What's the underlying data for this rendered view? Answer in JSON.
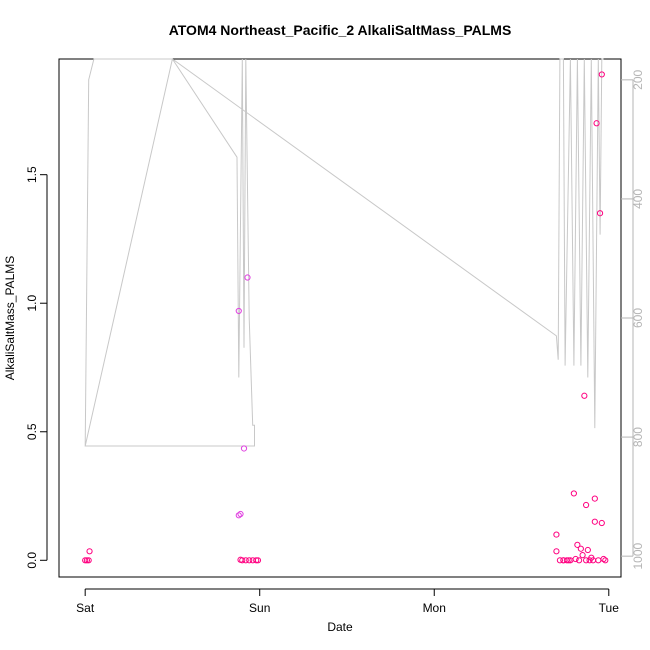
{
  "chart_data": {
    "type": "scatter",
    "title": "ATOM4 Northeast_Pacific_2 AlkaliSaltMass_PALMS",
    "xlabel": "Date",
    "ylabel": "AlkaliSaltMass_PALMS",
    "x_ticks": [
      {
        "label": "Sat",
        "t": 0
      },
      {
        "label": "Sun",
        "t": 1
      },
      {
        "label": "Mon",
        "t": 2
      },
      {
        "label": "Tue",
        "t": 3
      }
    ],
    "xlim": [
      -0.15,
      3.07
    ],
    "ylim": [
      -0.065,
      1.95
    ],
    "y_ticks": [
      0.0,
      0.5,
      1.0,
      1.5
    ],
    "y_tick_labels": [
      "0.0",
      "0.5",
      "1.0",
      "1.5"
    ],
    "y2_ticks": [
      200,
      400,
      600,
      800,
      1000
    ],
    "y2_tick_labels": [
      "200",
      "400",
      "600",
      "800",
      "1000"
    ],
    "y2_lim": [
      1035,
      165
    ],
    "grid": false,
    "colors": {
      "points": "#ff0080",
      "points_alt": "#e040e0",
      "pressure_line": "#c8c8c8",
      "right_axis": "#b5b5b5"
    },
    "series": [
      {
        "name": "",
        "type": "scatter",
        "points": [
          [
            0.0,
            0.0
          ],
          [
            0.01,
            0.0
          ],
          [
            0.02,
            0.0
          ],
          [
            0.025,
            0.035
          ],
          [
            0.88,
            0.97
          ],
          [
            0.88,
            0.175
          ],
          [
            0.89,
            0.18
          ],
          [
            0.89,
            0.002
          ],
          [
            0.91,
            0.435
          ],
          [
            0.93,
            1.1
          ],
          [
            0.9,
            0.0
          ],
          [
            0.92,
            0.0
          ],
          [
            0.94,
            0.0
          ],
          [
            0.96,
            0.0
          ],
          [
            0.98,
            0.0
          ],
          [
            0.99,
            0.0
          ],
          [
            2.7,
            0.1
          ],
          [
            2.7,
            0.035
          ],
          [
            2.72,
            0.0
          ],
          [
            2.74,
            0.0
          ],
          [
            2.76,
            0.0
          ],
          [
            2.78,
            0.0
          ],
          [
            2.8,
            0.26
          ],
          [
            2.82,
            0.06
          ],
          [
            2.83,
            0.0
          ],
          [
            2.84,
            0.045
          ],
          [
            2.85,
            0.02
          ],
          [
            2.86,
            0.64
          ],
          [
            2.87,
            0.215
          ],
          [
            2.88,
            0.04
          ],
          [
            2.89,
            0.0
          ],
          [
            2.9,
            0.01
          ],
          [
            2.92,
            0.24
          ],
          [
            2.92,
            0.15
          ],
          [
            2.93,
            1.7
          ],
          [
            2.94,
            0.0
          ],
          [
            2.95,
            1.35
          ],
          [
            2.96,
            1.89
          ],
          [
            2.96,
            0.145
          ],
          [
            2.97,
            0.005
          ],
          [
            2.98,
            0.0
          ],
          [
            2.74,
            0.0
          ],
          [
            2.77,
            0.0
          ],
          [
            2.81,
            0.005
          ],
          [
            2.87,
            0.0
          ],
          [
            2.91,
            0.0
          ]
        ]
      },
      {
        "name": "",
        "type": "line",
        "axis": "right",
        "points": [
          [
            0.0,
            815
          ],
          [
            0.02,
            200
          ],
          [
            0.05,
            165
          ],
          [
            0.5,
            165
          ],
          [
            0.87,
            330
          ],
          [
            0.88,
            700
          ],
          [
            0.9,
            165
          ],
          [
            0.91,
            650
          ],
          [
            0.92,
            165
          ],
          [
            0.94,
            600
          ],
          [
            0.96,
            780
          ],
          [
            0.97,
            780
          ],
          [
            0.97,
            815
          ],
          [
            0.0,
            815
          ],
          [
            0.5,
            165
          ],
          [
            2.7,
            630
          ],
          [
            2.71,
            670
          ],
          [
            2.72,
            165
          ],
          [
            2.74,
            165
          ],
          [
            2.75,
            680
          ],
          [
            2.78,
            165
          ],
          [
            2.8,
            680
          ],
          [
            2.82,
            165
          ],
          [
            2.84,
            680
          ],
          [
            2.86,
            165
          ],
          [
            2.88,
            700
          ],
          [
            2.9,
            165
          ],
          [
            2.92,
            785
          ],
          [
            2.94,
            165
          ],
          [
            2.95,
            460
          ],
          [
            2.96,
            165
          ],
          [
            2.97,
            165
          ]
        ]
      }
    ]
  }
}
